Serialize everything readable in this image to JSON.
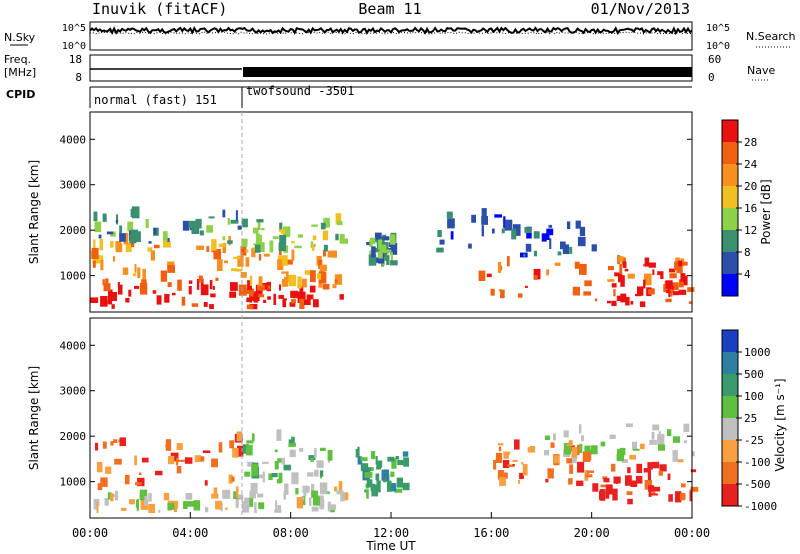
{
  "header": {
    "title": "Inuvik (fitACF)",
    "beam": "Beam 11",
    "date": "01/Nov/2013"
  },
  "time_axis": {
    "label": "Time UT",
    "ticks": [
      "00:00",
      "04:00",
      "08:00",
      "12:00",
      "16:00",
      "20:00",
      "00:00"
    ],
    "range_hours": [
      0,
      24
    ]
  },
  "noise_panel": {
    "left_label": "N.Sky",
    "right_label": "N.Search",
    "left_ticks": [
      "10^5",
      "10^0"
    ],
    "right_ticks": [
      "10^5",
      "10^0"
    ]
  },
  "freq_panel": {
    "left_label_1": "Freq.",
    "left_label_2": "[MHz]",
    "left_ticks": [
      "18",
      "8"
    ],
    "right_label": "Nave",
    "right_ticks": [
      "60",
      "0"
    ]
  },
  "cpid_panel": {
    "label": "CPID",
    "modes": [
      {
        "name": "normal (fast) 151",
        "start_hour": 0,
        "end_hour": 6
      },
      {
        "name": "twofsound -3501",
        "start_hour": 6,
        "end_hour": 24
      }
    ]
  },
  "colors": {
    "power_scale": [
      "#0000ff",
      "#2b4fa8",
      "#3a8f6e",
      "#8fd04a",
      "#f0c020",
      "#f89020",
      "#f06010",
      "#e81010"
    ],
    "velocity_scale": [
      "#1a3fbf",
      "#2e7fa0",
      "#3a9a6a",
      "#5fc040",
      "#c0c0c0",
      "#f8a040",
      "#f07020",
      "#e82020"
    ]
  },
  "chart_data": [
    {
      "type": "heatmap",
      "name": "power",
      "ylabel": "Slant Range [km]",
      "yticks": [
        1000,
        2000,
        3000,
        4000
      ],
      "ylim": [
        200,
        4600
      ],
      "xlim": [
        0,
        24
      ],
      "colorbar_label": "Power [dB]",
      "colorbar_ticks": [
        "4",
        "8",
        "12",
        "16",
        "20",
        "24",
        "28"
      ],
      "regions": [
        {
          "x0": 0.0,
          "x1": 6.0,
          "y0": 250,
          "y1": 900,
          "level": 7
        },
        {
          "x0": 0.0,
          "x1": 6.0,
          "y0": 900,
          "y1": 1700,
          "level": 5
        },
        {
          "x0": 0.0,
          "x1": 6.0,
          "y0": 1700,
          "y1": 2300,
          "level": 2
        },
        {
          "x0": 6.0,
          "x1": 10.0,
          "y0": 250,
          "y1": 700,
          "level": 7
        },
        {
          "x0": 6.0,
          "x1": 10.0,
          "y0": 700,
          "y1": 1500,
          "level": 5
        },
        {
          "x0": 6.0,
          "x1": 10.0,
          "y0": 1500,
          "y1": 2200,
          "level": 3
        },
        {
          "x0": 11.0,
          "x1": 12.0,
          "y0": 1200,
          "y1": 1800,
          "level": 2
        },
        {
          "x0": 13.5,
          "x1": 20.0,
          "y0": 1400,
          "y1": 2300,
          "level": 1
        },
        {
          "x0": 15.0,
          "x1": 24.0,
          "y0": 500,
          "y1": 1300,
          "level": 6
        },
        {
          "x0": 20.0,
          "x1": 24.0,
          "y0": 300,
          "y1": 1200,
          "level": 7
        }
      ]
    },
    {
      "type": "heatmap",
      "name": "velocity",
      "ylabel": "Slant Range [km]",
      "yticks": [
        1000,
        2000,
        3000,
        4000
      ],
      "ylim": [
        200,
        4600
      ],
      "xlim": [
        0,
        24
      ],
      "colorbar_label": "Velocity [m s⁻¹]",
      "colorbar_ticks": [
        "1000",
        "500",
        "100",
        "25",
        "-25",
        "-100",
        "-500",
        "-1000"
      ],
      "regions": [
        {
          "x0": 0.0,
          "x1": 6.0,
          "y0": 800,
          "y1": 2000,
          "level": 6
        },
        {
          "x0": 0.0,
          "x1": 6.0,
          "y0": 300,
          "y1": 700,
          "level": 4
        },
        {
          "x0": 6.0,
          "x1": 9.5,
          "y0": 900,
          "y1": 1900,
          "level": 3
        },
        {
          "x0": 6.0,
          "x1": 10.0,
          "y0": 300,
          "y1": 800,
          "level": 4
        },
        {
          "x0": 10.5,
          "x1": 12.5,
          "y0": 600,
          "y1": 1600,
          "level": 2
        },
        {
          "x0": 16.0,
          "x1": 20.0,
          "y0": 900,
          "y1": 1800,
          "level": 6
        },
        {
          "x0": 20.0,
          "x1": 24.0,
          "y0": 500,
          "y1": 1300,
          "level": 7
        },
        {
          "x0": 18.0,
          "x1": 24.0,
          "y0": 1400,
          "y1": 2200,
          "level": 4
        }
      ]
    }
  ]
}
